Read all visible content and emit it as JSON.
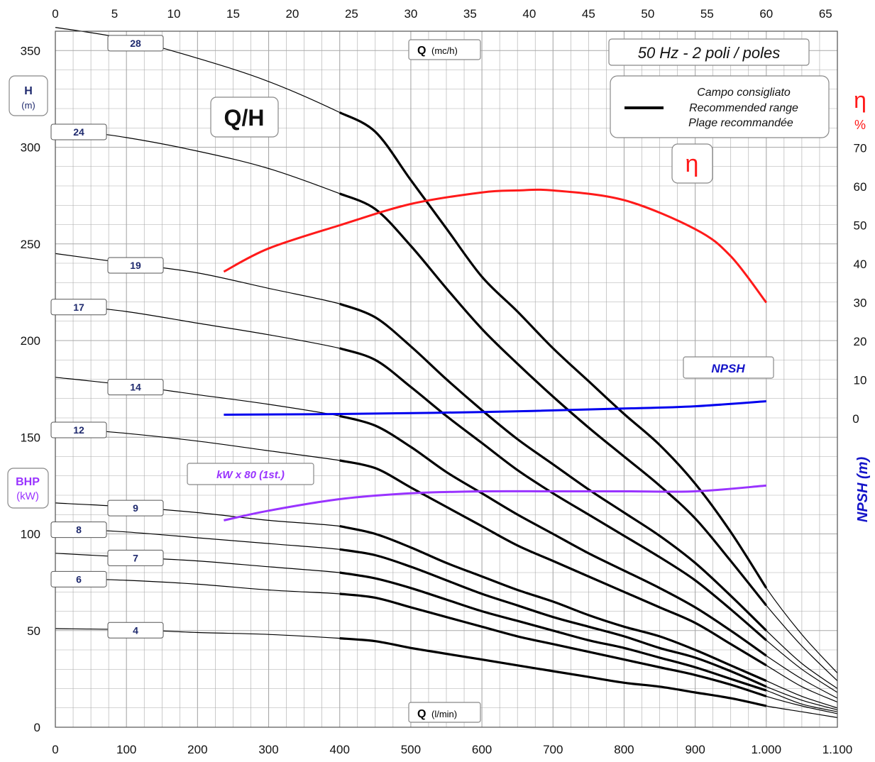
{
  "chart_data": {
    "type": "line",
    "axes": {
      "bottom": {
        "unit_label": "Q",
        "unit_sub": "(l/min)",
        "range": [
          0,
          1100
        ],
        "ticks": [
          0,
          100,
          200,
          300,
          400,
          500,
          600,
          700,
          800,
          900,
          1000,
          1100
        ],
        "tick_labels": [
          "0",
          "100",
          "200",
          "300",
          "400",
          "500",
          "600",
          "700",
          "800",
          "900",
          "1.000",
          "1.100"
        ]
      },
      "top": {
        "unit_label": "Q",
        "unit_sub": "(mc/h)",
        "range": [
          0,
          66
        ],
        "ticks": [
          0,
          5,
          10,
          15,
          20,
          25,
          30,
          35,
          40,
          45,
          50,
          55,
          60,
          65
        ]
      },
      "left": {
        "label": "H",
        "label_sub": "(m)",
        "range": [
          0,
          360
        ],
        "ticks": [
          0,
          50,
          100,
          150,
          200,
          250,
          300,
          350
        ]
      },
      "left_secondary": {
        "label": "BHP",
        "label_sub": "(kW)"
      },
      "right_efficiency": {
        "label": "η",
        "label_sub": "%",
        "ticks": [
          10,
          20,
          30,
          40,
          50,
          60,
          70
        ]
      },
      "right_npsh": {
        "label": "NPSH (m)",
        "ticks": [
          0
        ]
      }
    },
    "grid": true,
    "title": "Q/H",
    "frequency_note": "50 Hz - 2 poli / poles",
    "legend": {
      "placement": "top-right",
      "lines": [
        "Campo consigliato",
        "Recommended range",
        "Plage recommandée"
      ]
    },
    "efficiency_label": "η",
    "npsh_label": "NPSH",
    "power_label": "kW x 80 (1st.)",
    "series": [
      {
        "name": "28",
        "color": "#000000",
        "points": [
          [
            0,
            362
          ],
          [
            100,
            356
          ],
          [
            200,
            346
          ],
          [
            300,
            334
          ],
          [
            400,
            318
          ],
          [
            450,
            308
          ],
          [
            500,
            283
          ],
          [
            550,
            258
          ],
          [
            600,
            233
          ],
          [
            650,
            215
          ],
          [
            700,
            196
          ],
          [
            750,
            179
          ],
          [
            800,
            162
          ],
          [
            850,
            146
          ],
          [
            900,
            126
          ],
          [
            950,
            101
          ],
          [
            1000,
            72
          ],
          [
            1050,
            48
          ],
          [
            1100,
            28
          ]
        ]
      },
      {
        "name": "24",
        "color": "#000000",
        "points": [
          [
            0,
            310
          ],
          [
            100,
            305
          ],
          [
            200,
            298
          ],
          [
            300,
            289
          ],
          [
            400,
            276
          ],
          [
            450,
            268
          ],
          [
            500,
            249
          ],
          [
            550,
            227
          ],
          [
            600,
            206
          ],
          [
            650,
            188
          ],
          [
            700,
            171
          ],
          [
            750,
            155
          ],
          [
            800,
            140
          ],
          [
            850,
            125
          ],
          [
            900,
            108
          ],
          [
            950,
            86
          ],
          [
            1000,
            63
          ],
          [
            1050,
            42
          ],
          [
            1100,
            24
          ]
        ]
      },
      {
        "name": "19",
        "color": "#000000",
        "points": [
          [
            0,
            245
          ],
          [
            100,
            240
          ],
          [
            200,
            235
          ],
          [
            300,
            227
          ],
          [
            400,
            219
          ],
          [
            450,
            212
          ],
          [
            500,
            197
          ],
          [
            550,
            180
          ],
          [
            600,
            164
          ],
          [
            650,
            149
          ],
          [
            700,
            136
          ],
          [
            750,
            123
          ],
          [
            800,
            111
          ],
          [
            850,
            99
          ],
          [
            900,
            85
          ],
          [
            950,
            68
          ],
          [
            1000,
            50
          ],
          [
            1050,
            33
          ],
          [
            1100,
            20
          ]
        ]
      },
      {
        "name": "17",
        "color": "#000000",
        "points": [
          [
            0,
            219
          ],
          [
            100,
            215
          ],
          [
            200,
            209
          ],
          [
            300,
            203
          ],
          [
            400,
            196
          ],
          [
            450,
            190
          ],
          [
            500,
            176
          ],
          [
            550,
            161
          ],
          [
            600,
            147
          ],
          [
            650,
            133
          ],
          [
            700,
            121
          ],
          [
            750,
            110
          ],
          [
            800,
            99
          ],
          [
            850,
            88
          ],
          [
            900,
            76
          ],
          [
            950,
            61
          ],
          [
            1000,
            45
          ],
          [
            1050,
            30
          ],
          [
            1100,
            18
          ]
        ]
      },
      {
        "name": "14",
        "color": "#000000",
        "points": [
          [
            0,
            181
          ],
          [
            100,
            177
          ],
          [
            200,
            172
          ],
          [
            300,
            167
          ],
          [
            400,
            161
          ],
          [
            450,
            156
          ],
          [
            500,
            145
          ],
          [
            550,
            132
          ],
          [
            600,
            121
          ],
          [
            650,
            110
          ],
          [
            700,
            100
          ],
          [
            750,
            90
          ],
          [
            800,
            81
          ],
          [
            850,
            72
          ],
          [
            900,
            62
          ],
          [
            950,
            50
          ],
          [
            1000,
            37
          ],
          [
            1050,
            25
          ],
          [
            1100,
            15
          ]
        ]
      },
      {
        "name": "12",
        "color": "#000000",
        "points": [
          [
            0,
            155
          ],
          [
            100,
            152
          ],
          [
            200,
            148
          ],
          [
            300,
            143
          ],
          [
            400,
            138
          ],
          [
            450,
            134
          ],
          [
            500,
            124
          ],
          [
            550,
            114
          ],
          [
            600,
            104
          ],
          [
            650,
            94
          ],
          [
            700,
            86
          ],
          [
            750,
            78
          ],
          [
            800,
            70
          ],
          [
            850,
            62
          ],
          [
            900,
            54
          ],
          [
            950,
            43
          ],
          [
            1000,
            32
          ],
          [
            1050,
            21
          ],
          [
            1100,
            13
          ]
        ]
      },
      {
        "name": "9",
        "color": "#000000",
        "points": [
          [
            0,
            116
          ],
          [
            100,
            114
          ],
          [
            200,
            111
          ],
          [
            300,
            107
          ],
          [
            400,
            104
          ],
          [
            450,
            100
          ],
          [
            500,
            93
          ],
          [
            550,
            85
          ],
          [
            600,
            78
          ],
          [
            650,
            71
          ],
          [
            700,
            65
          ],
          [
            750,
            58
          ],
          [
            800,
            52
          ],
          [
            850,
            47
          ],
          [
            900,
            40
          ],
          [
            950,
            32
          ],
          [
            1000,
            24
          ],
          [
            1050,
            16
          ],
          [
            1100,
            10
          ]
        ]
      },
      {
        "name": "8",
        "color": "#000000",
        "points": [
          [
            0,
            103
          ],
          [
            100,
            101
          ],
          [
            200,
            98
          ],
          [
            300,
            95
          ],
          [
            400,
            92
          ],
          [
            450,
            89
          ],
          [
            500,
            83
          ],
          [
            550,
            76
          ],
          [
            600,
            69
          ],
          [
            650,
            63
          ],
          [
            700,
            57
          ],
          [
            750,
            52
          ],
          [
            800,
            47
          ],
          [
            850,
            41
          ],
          [
            900,
            36
          ],
          [
            950,
            29
          ],
          [
            1000,
            21
          ],
          [
            1050,
            14
          ],
          [
            1100,
            9
          ]
        ]
      },
      {
        "name": "7",
        "color": "#000000",
        "points": [
          [
            0,
            90
          ],
          [
            100,
            88
          ],
          [
            200,
            86
          ],
          [
            300,
            83
          ],
          [
            400,
            80
          ],
          [
            450,
            77
          ],
          [
            500,
            72
          ],
          [
            550,
            66
          ],
          [
            600,
            60
          ],
          [
            650,
            55
          ],
          [
            700,
            50
          ],
          [
            750,
            45
          ],
          [
            800,
            41
          ],
          [
            850,
            36
          ],
          [
            900,
            31
          ],
          [
            950,
            25
          ],
          [
            1000,
            19
          ],
          [
            1050,
            12
          ],
          [
            1100,
            8
          ]
        ]
      },
      {
        "name": "6",
        "color": "#000000",
        "points": [
          [
            0,
            77
          ],
          [
            100,
            76
          ],
          [
            200,
            74
          ],
          [
            300,
            71
          ],
          [
            400,
            69
          ],
          [
            450,
            67
          ],
          [
            500,
            62
          ],
          [
            550,
            57
          ],
          [
            600,
            52
          ],
          [
            650,
            47
          ],
          [
            700,
            43
          ],
          [
            750,
            39
          ],
          [
            800,
            35
          ],
          [
            850,
            31
          ],
          [
            900,
            27
          ],
          [
            950,
            22
          ],
          [
            1000,
            16
          ],
          [
            1050,
            11
          ],
          [
            1100,
            7
          ]
        ]
      },
      {
        "name": "4",
        "color": "#000000",
        "points": [
          [
            0,
            51
          ],
          [
            100,
            50.5
          ],
          [
            200,
            49
          ],
          [
            300,
            48
          ],
          [
            400,
            46
          ],
          [
            450,
            44.5
          ],
          [
            500,
            41
          ],
          [
            550,
            38
          ],
          [
            600,
            35
          ],
          [
            650,
            32
          ],
          [
            700,
            29
          ],
          [
            750,
            26
          ],
          [
            800,
            23
          ],
          [
            850,
            21
          ],
          [
            900,
            18
          ],
          [
            950,
            15
          ],
          [
            1000,
            11
          ],
          [
            1050,
            8
          ],
          [
            1100,
            5
          ]
        ]
      },
      {
        "name": "η",
        "color": "#ff1a1a",
        "points": [
          [
            237,
            38
          ],
          [
            300,
            44
          ],
          [
            400,
            50
          ],
          [
            500,
            55.5
          ],
          [
            600,
            58.5
          ],
          [
            650,
            59
          ],
          [
            700,
            59
          ],
          [
            800,
            56.5
          ],
          [
            900,
            49
          ],
          [
            950,
            42
          ],
          [
            1000,
            30
          ]
        ]
      },
      {
        "name": "NPSH",
        "color": "#0000ee",
        "points": [
          [
            237,
            1
          ],
          [
            400,
            1.2
          ],
          [
            600,
            1.7
          ],
          [
            800,
            2.6
          ],
          [
            900,
            3.2
          ],
          [
            1000,
            4.5
          ]
        ]
      },
      {
        "name": "kW x 80 (1st.)",
        "color": "#9933ff",
        "points": [
          [
            237,
            107
          ],
          [
            300,
            112
          ],
          [
            400,
            118
          ],
          [
            500,
            121
          ],
          [
            600,
            122
          ],
          [
            700,
            122
          ],
          [
            800,
            122
          ],
          [
            900,
            122
          ],
          [
            1000,
            125
          ]
        ]
      }
    ]
  }
}
